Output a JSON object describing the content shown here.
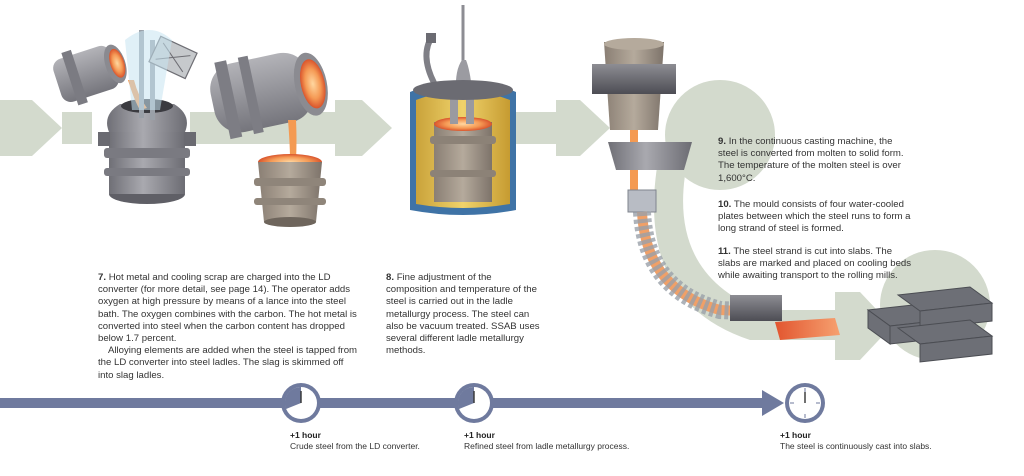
{
  "steps": [
    {
      "number": "7.",
      "paragraphs": [
        "Hot metal and cooling scrap are charged into the LD converter (for more detail, see page 14). The operator adds oxygen at high pressure by means of a lance into the steel bath. The oxygen combines with the carbon. The hot metal is converted into steel when the carbon content has dropped below 1.7 percent.",
        "Alloying elements are added when the steel is tapped from the LD converter into steel ladles. The slag is skimmed off into slag ladles."
      ]
    },
    {
      "number": "8.",
      "paragraphs": [
        "Fine adjustment of the composition and temperature of the steel is carried out in the ladle metallurgy process. The steel can also be vacuum treated. SSAB uses several different ladle metallurgy methods."
      ]
    },
    {
      "number": "9.",
      "paragraphs": [
        "In the continuous casting machine, the steel is converted from molten to solid form. The temperature of the molten steel is over 1,600°C."
      ]
    },
    {
      "number": "10.",
      "paragraphs": [
        "The mould consists of four water-cooled plates between which the steel runs to form a long strand of steel is formed."
      ]
    },
    {
      "number": "11.",
      "paragraphs": [
        "The steel strand is cut into slabs. The slabs are marked and placed on cooling beds while awaiting transport to the rolling mills."
      ]
    }
  ],
  "timeline": [
    {
      "duration": "+1 hour",
      "caption": "Crude steel from the LD converter."
    },
    {
      "duration": "+1 hour",
      "caption": "Refined steel from ladle metallurgy process."
    },
    {
      "duration": "+1 hour",
      "caption": "The steel is continuously cast into slabs."
    }
  ],
  "colors": {
    "flow_arrow": "#d3dacd",
    "timeline": "#6f7a9e",
    "clock_face": "#6f7a9e",
    "vessel": "#8c8c92",
    "molten_steel": "#f2a05a",
    "hot_slab": "#e8603a",
    "ladle_lid": "#3f73a6"
  },
  "icons": [
    "clock-icon",
    "ld-converter",
    "steel-ladle",
    "vacuum-vessel",
    "continuous-caster",
    "slab-stack"
  ]
}
